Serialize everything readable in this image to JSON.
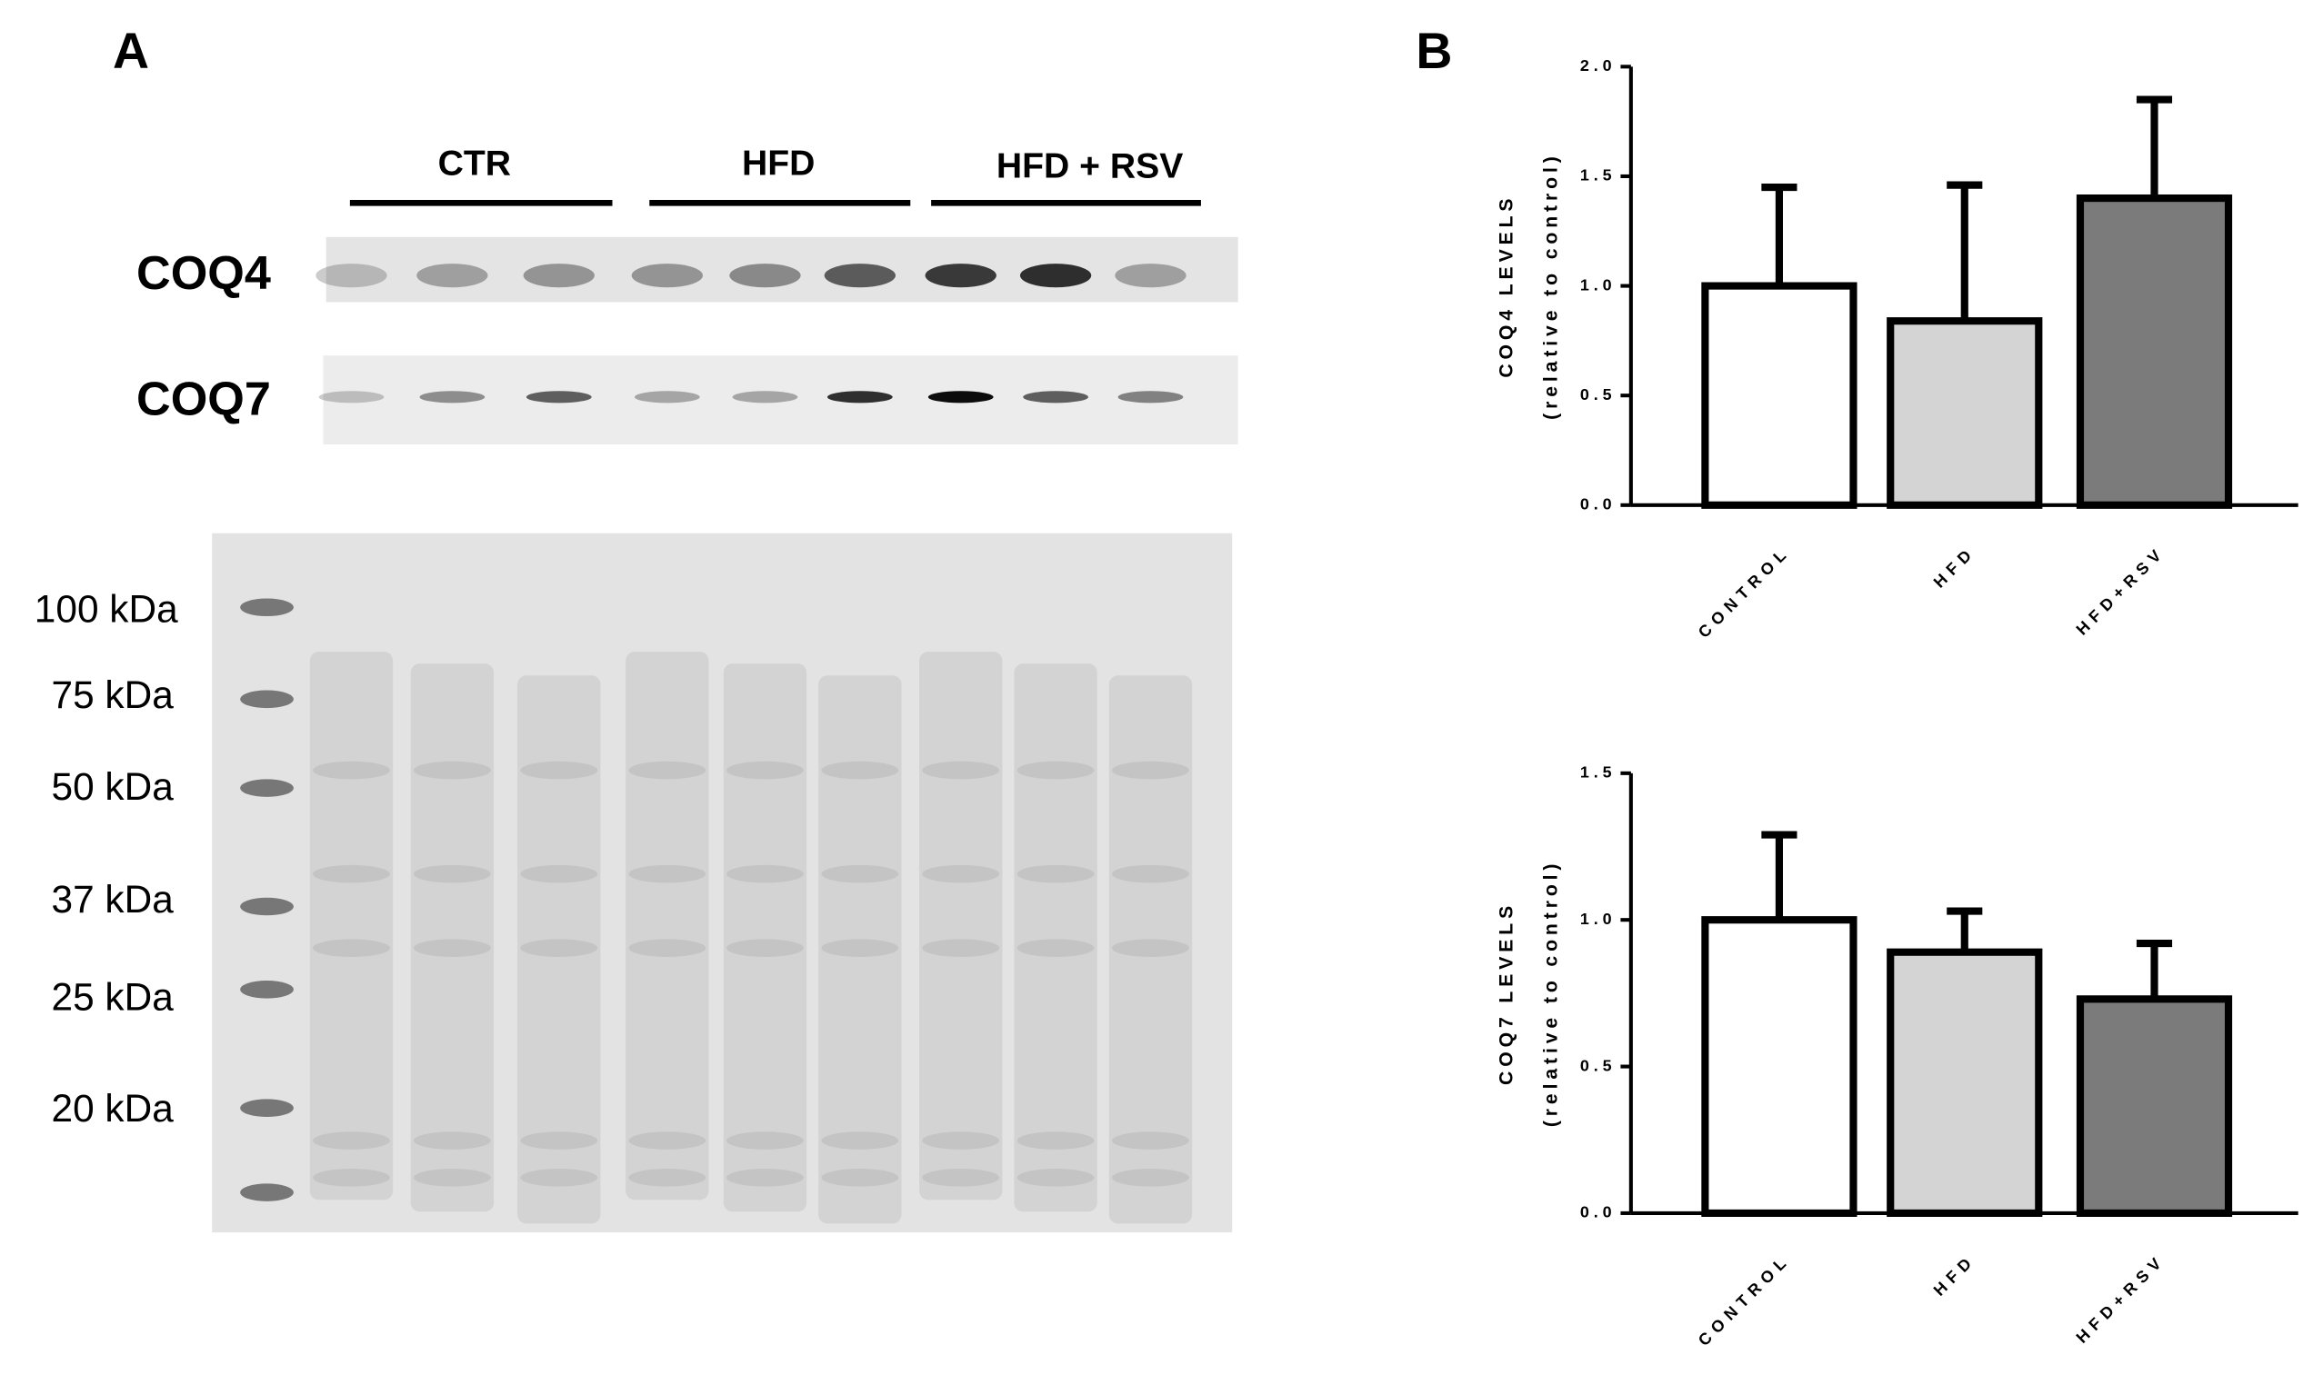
{
  "panel_a": {
    "label": "A",
    "groups": [
      "CTR",
      "HFD",
      "HFD + RSV"
    ],
    "proteins": [
      "COQ4",
      "COQ7"
    ],
    "markers": [
      "100 kDa",
      "75 kDa",
      "50 kDa",
      "37 kDa",
      "25 kDa",
      "20 kDa"
    ]
  },
  "panel_b": {
    "label": "B"
  },
  "chart_data": [
    {
      "type": "bar",
      "ylabel": "COQ4 LEVELS",
      "ylabel_sub": "(relative to control)",
      "categories": [
        "CONTROL",
        "HFD",
        "HFD+RSV"
      ],
      "values": [
        1.0,
        0.84,
        1.4
      ],
      "errors": [
        0.45,
        0.62,
        0.45
      ],
      "colors": [
        "#ffffff",
        "#d4d4d4",
        "#7b7b7b"
      ],
      "ylim": [
        0,
        2
      ],
      "yticks": [
        {
          "value": 0,
          "label": "0.0"
        },
        0.5,
        {
          "value": 1,
          "label": "1.0"
        },
        1.5,
        {
          "value": 2,
          "label": "2.0"
        }
      ]
    },
    {
      "type": "bar",
      "ylabel": "COQ7 LEVELS",
      "ylabel_sub": "(relative to control)",
      "categories": [
        "CONTROL",
        "HFD",
        "HFD+RSV"
      ],
      "values": [
        1.0,
        0.89,
        0.73
      ],
      "errors": [
        0.29,
        0.14,
        0.19
      ],
      "colors": [
        "#ffffff",
        "#d4d4d4",
        "#7b7b7b"
      ],
      "ylim": [
        0,
        1.5
      ],
      "yticks": [
        {
          "value": 0,
          "label": "0.0"
        },
        0.5,
        {
          "value": 1,
          "label": "1.0"
        },
        1.5
      ]
    }
  ]
}
